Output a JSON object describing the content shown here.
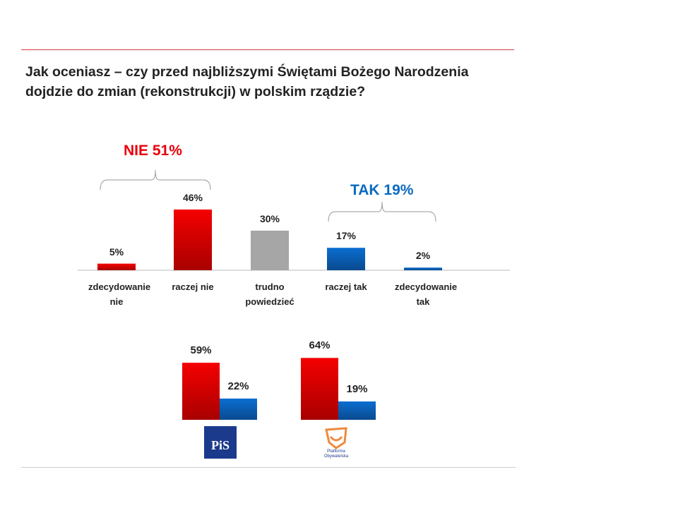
{
  "title_line1": "Jak oceniasz – czy przed najbliższymi Świętami Bożego Narodzenia",
  "title_line2": "dojdzie do zmian (rekonstrukcji) w polskim rządzie?",
  "colors": {
    "red": "#e8000b",
    "blue": "#0a6ac0",
    "gray": "#a6a6a6",
    "rule": "#d9383f"
  },
  "chart_data": [
    {
      "type": "bar",
      "categories": [
        "zdecydowanie nie",
        "raczej nie",
        "trudno powiedzieć",
        "raczej tak",
        "zdecydowanie tak"
      ],
      "values": [
        5,
        46,
        30,
        17,
        2
      ],
      "value_labels": [
        "5%",
        "46%",
        "30%",
        "17%",
        "2%"
      ],
      "bar_colors": [
        "red",
        "red",
        "gray",
        "blue",
        "blue"
      ],
      "annotations": [
        {
          "text": "NIE 51%",
          "spans": [
            0,
            1
          ],
          "color": "red"
        },
        {
          "text": "TAK 19%",
          "spans": [
            3,
            4
          ],
          "color": "blue"
        }
      ],
      "ylim": [
        0,
        50
      ]
    },
    {
      "type": "bar",
      "categories": [
        "PiS",
        "Platforma Obywatelska"
      ],
      "series": [
        {
          "name": "NIE",
          "values": [
            59,
            64
          ],
          "labels": [
            "59%",
            "64%"
          ],
          "color": "red"
        },
        {
          "name": "TAK",
          "values": [
            22,
            19
          ],
          "labels": [
            "22%",
            "19%"
          ],
          "color": "blue"
        }
      ],
      "ylim": [
        0,
        70
      ]
    }
  ],
  "logos": {
    "pis": "PiS",
    "po": "Platforma Obywatelska"
  }
}
